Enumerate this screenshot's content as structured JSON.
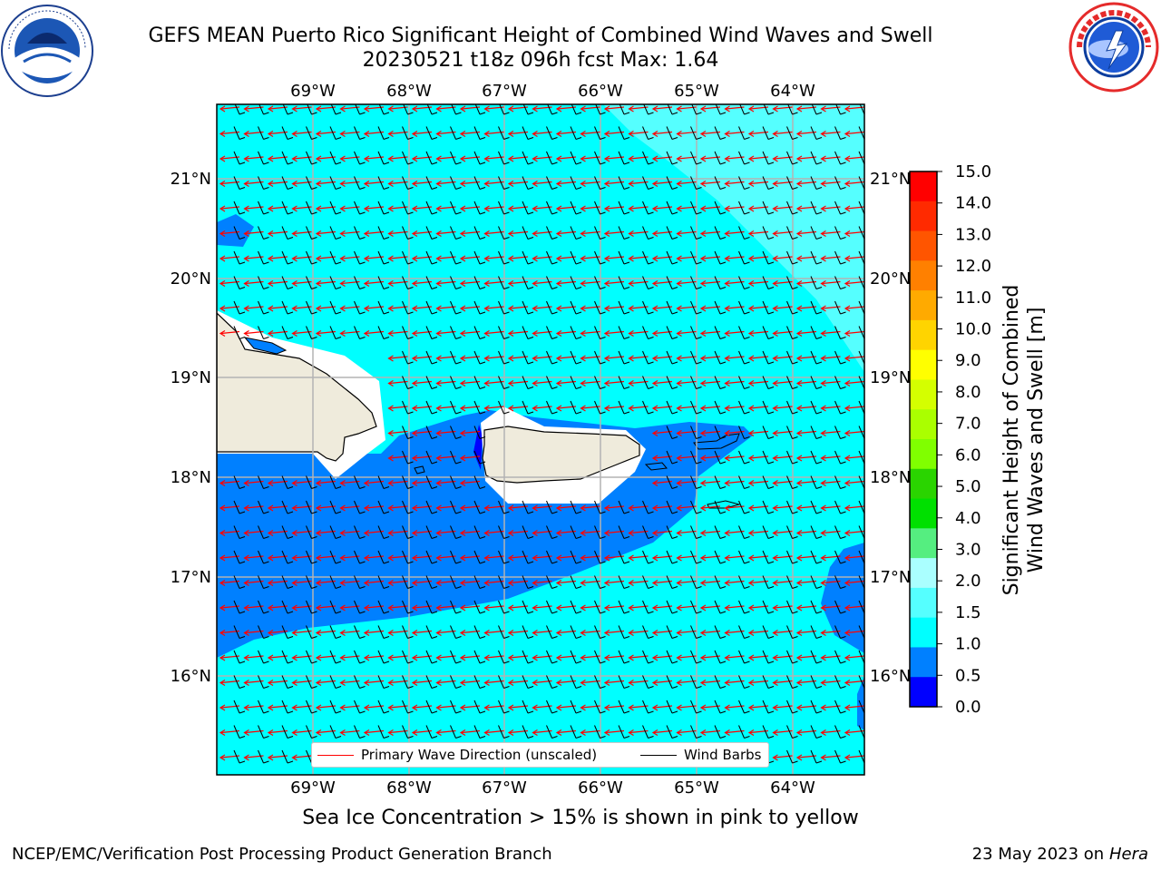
{
  "header": {
    "title_line1": "GEFS MEAN Puerto Rico Significant Height of Combined Wind Waves and Swell",
    "title_line2": "20230521 t18z 096h fcst   Max: 1.64"
  },
  "logos": {
    "left": "noaa-logo",
    "right": "nws-logo"
  },
  "map": {
    "lon_labels": [
      "69°W",
      "68°W",
      "67°W",
      "66°W",
      "65°W",
      "64°W"
    ],
    "lat_labels": [
      "21°N",
      "20°N",
      "19°N",
      "18°N",
      "17°N",
      "16°N"
    ],
    "legend": {
      "wave_direction": "Primary Wave Direction (unscaled)",
      "wind_barbs": "Wind Barbs"
    },
    "colors": {
      "ocean_low": "#00ffff",
      "band_1_0_1_5": "#0080ff",
      "band_0_5_1_0": "#0000ff",
      "band_1_5_2_0": "#55ffff",
      "land": "#efebdc",
      "wave_arrow": "#ff0000",
      "wind_barb": "#000000"
    }
  },
  "colorbar": {
    "title_line1": "Significant Height of Combined",
    "title_line2": "Wind Waves and Swell [m]",
    "ticks": [
      "15.0",
      "14.0",
      "13.0",
      "12.0",
      "11.0",
      "10.0",
      "9.0",
      "8.0",
      "7.0",
      "6.0",
      "5.0",
      "4.0",
      "3.0",
      "2.0",
      "1.5",
      "1.0",
      "0.5",
      "0.0"
    ],
    "colors": [
      "#ff0000",
      "#ff2a00",
      "#ff5500",
      "#ff8000",
      "#ffaa00",
      "#ffd400",
      "#ffff00",
      "#d4ff00",
      "#aaff00",
      "#80ff00",
      "#2ad400",
      "#00e000",
      "#55ee80",
      "#aaffff",
      "#55ffff",
      "#00ffff",
      "#0080ff",
      "#0000ff"
    ]
  },
  "footer": {
    "ice_note": "Sea Ice Concentration > 15% is shown in pink to yellow",
    "credit_left": "NCEP/EMC/Verification Post Processing Product Generation Branch",
    "credit_date": "23 May 2023 on",
    "credit_host": "Hera"
  }
}
